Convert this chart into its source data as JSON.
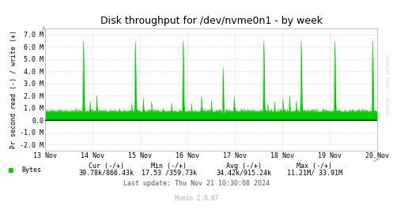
{
  "title": "Disk throughput for /dev/nvme0n1 - by week",
  "ylabel": "Pr second read (-) / write (+)",
  "background_color": "#ffffff",
  "plot_bg_color": "#ffffff",
  "grid_color": "#ffaaaa",
  "border_color": "#aaaaaa",
  "line_color": "#00cc00",
  "zero_line_color": "#000000",
  "ylim": [
    -2500000,
    7500000
  ],
  "yticks": [
    -2000000,
    -1000000,
    0,
    1000000,
    2000000,
    3000000,
    4000000,
    5000000,
    6000000,
    7000000
  ],
  "ytick_labels": [
    "-2.0 M",
    "-1.0 M",
    "0.0",
    "1.0 M",
    "2.0 M",
    "3.0 M",
    "4.0 M",
    "5.0 M",
    "6.0 M",
    "7.0 M"
  ],
  "xlabel_dates": [
    "13 Nov",
    "14 Nov",
    "15 Nov",
    "16 Nov",
    "17 Nov",
    "18 Nov",
    "19 Nov",
    "20 Nov"
  ],
  "legend_label": "Bytes",
  "legend_color": "#00cc00",
  "last_update": "Last update: Thu Nov 21 10:30:08 2024",
  "munin_version": "Munin 2.0.67",
  "rrdtool_label": "RRDTOOL / TOBI OETIKER",
  "stats_line1_cols": [
    "Cur (-/+)",
    "Min (-/+)",
    "Avg (-/+)",
    "Max (-/+)"
  ],
  "stats_line2_cols": [
    "39.78k/866.43k",
    "17.53 /359.73k",
    "34.42k/915.24k",
    "11.21M/ 33.91M"
  ],
  "title_fontsize": 9,
  "axis_fontsize": 6,
  "tick_fontsize": 6,
  "stats_fontsize": 6,
  "num_points": 800
}
